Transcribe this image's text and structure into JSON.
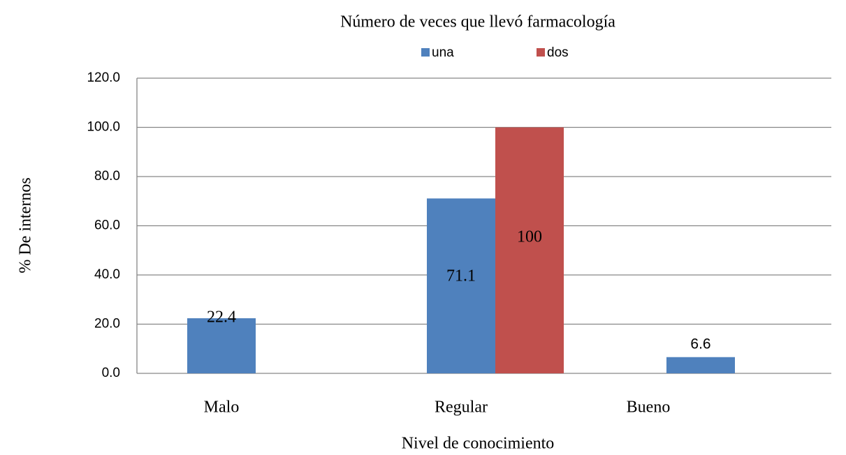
{
  "chart_data": {
    "type": "bar",
    "title": "Número de veces que llevó farmacología",
    "x_label": "Nivel de conocimiento",
    "y_label": "% De internos",
    "categories": [
      "Malo",
      "Regular",
      "Bueno"
    ],
    "series": [
      {
        "name": "una",
        "color": "#4f81bd",
        "values": [
          22.4,
          71.1,
          6.6
        ]
      },
      {
        "name": "dos",
        "color": "#c0504d",
        "values": [
          null,
          100,
          null
        ]
      }
    ],
    "ylim": [
      0,
      120
    ],
    "yticks": [
      {
        "value": 0,
        "label": "0.0"
      },
      {
        "value": 20,
        "label": "20.0"
      },
      {
        "value": 40,
        "label": "40.0"
      },
      {
        "value": 60,
        "label": "60.0"
      },
      {
        "value": 80,
        "label": "80.0"
      },
      {
        "value": 100,
        "label": "100.0"
      },
      {
        "value": 120,
        "label": "120.0"
      }
    ],
    "grid": true,
    "legend": "top"
  }
}
